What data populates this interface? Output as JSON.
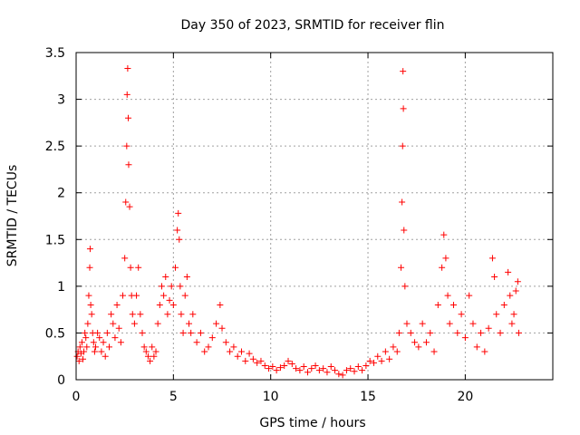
{
  "chart_data": {
    "type": "scatter",
    "title": "Day 350 of 2023, SRMTID for receiver flin",
    "xlabel": "GPS time / hours",
    "ylabel": "SRMTID / TECUs",
    "xlim": [
      0,
      24.5
    ],
    "ylim": [
      0,
      3.5
    ],
    "xticks": [
      0,
      5,
      10,
      15,
      20
    ],
    "xtick_labels": [
      "0",
      "5",
      "10",
      "15",
      "20"
    ],
    "yticks": [
      0,
      0.5,
      1,
      1.5,
      2,
      2.5,
      3,
      3.5
    ],
    "ytick_labels": [
      "0",
      "0.5",
      "1",
      "1.5",
      "2",
      "2.5",
      "3",
      "3.5"
    ],
    "grid": true,
    "marker": "+",
    "color": "#ff0000",
    "series": [
      {
        "name": "SRMTID",
        "points": [
          [
            0.05,
            0.25
          ],
          [
            0.1,
            0.3
          ],
          [
            0.15,
            0.2
          ],
          [
            0.2,
            0.35
          ],
          [
            0.25,
            0.28
          ],
          [
            0.3,
            0.4
          ],
          [
            0.35,
            0.22
          ],
          [
            0.4,
            0.3
          ],
          [
            0.45,
            0.5
          ],
          [
            0.5,
            0.45
          ],
          [
            0.55,
            0.35
          ],
          [
            0.6,
            0.6
          ],
          [
            0.65,
            0.9
          ],
          [
            0.7,
            1.2
          ],
          [
            0.72,
            1.4
          ],
          [
            0.75,
            0.8
          ],
          [
            0.8,
            0.7
          ],
          [
            0.85,
            0.5
          ],
          [
            0.9,
            0.4
          ],
          [
            0.95,
            0.3
          ],
          [
            1.0,
            0.35
          ],
          [
            1.1,
            0.5
          ],
          [
            1.2,
            0.45
          ],
          [
            1.3,
            0.3
          ],
          [
            1.4,
            0.4
          ],
          [
            1.5,
            0.25
          ],
          [
            1.6,
            0.5
          ],
          [
            1.7,
            0.35
          ],
          [
            1.8,
            0.7
          ],
          [
            1.9,
            0.6
          ],
          [
            2.0,
            0.45
          ],
          [
            2.1,
            0.8
          ],
          [
            2.2,
            0.55
          ],
          [
            2.3,
            0.4
          ],
          [
            2.4,
            0.9
          ],
          [
            2.5,
            1.3
          ],
          [
            2.55,
            1.9
          ],
          [
            2.6,
            2.5
          ],
          [
            2.62,
            3.05
          ],
          [
            2.65,
            3.33
          ],
          [
            2.68,
            2.8
          ],
          [
            2.7,
            2.3
          ],
          [
            2.75,
            1.85
          ],
          [
            2.8,
            1.2
          ],
          [
            2.85,
            0.9
          ],
          [
            2.9,
            0.7
          ],
          [
            3.0,
            0.6
          ],
          [
            3.1,
            0.9
          ],
          [
            3.2,
            1.2
          ],
          [
            3.3,
            0.7
          ],
          [
            3.4,
            0.5
          ],
          [
            3.5,
            0.35
          ],
          [
            3.6,
            0.3
          ],
          [
            3.7,
            0.25
          ],
          [
            3.8,
            0.2
          ],
          [
            3.9,
            0.35
          ],
          [
            4.0,
            0.25
          ],
          [
            4.1,
            0.3
          ],
          [
            4.2,
            0.6
          ],
          [
            4.3,
            0.8
          ],
          [
            4.4,
            1.0
          ],
          [
            4.5,
            0.9
          ],
          [
            4.6,
            1.1
          ],
          [
            4.7,
            0.7
          ],
          [
            4.8,
            0.85
          ],
          [
            4.9,
            1.0
          ],
          [
            5.0,
            0.8
          ],
          [
            5.1,
            1.2
          ],
          [
            5.2,
            1.6
          ],
          [
            5.25,
            1.78
          ],
          [
            5.3,
            1.5
          ],
          [
            5.35,
            1.0
          ],
          [
            5.4,
            0.7
          ],
          [
            5.5,
            0.5
          ],
          [
            5.6,
            0.9
          ],
          [
            5.7,
            1.1
          ],
          [
            5.8,
            0.6
          ],
          [
            5.9,
            0.5
          ],
          [
            6.0,
            0.7
          ],
          [
            6.2,
            0.4
          ],
          [
            6.4,
            0.5
          ],
          [
            6.6,
            0.3
          ],
          [
            6.8,
            0.35
          ],
          [
            7.0,
            0.45
          ],
          [
            7.2,
            0.6
          ],
          [
            7.4,
            0.8
          ],
          [
            7.5,
            0.55
          ],
          [
            7.7,
            0.4
          ],
          [
            7.9,
            0.3
          ],
          [
            8.1,
            0.35
          ],
          [
            8.3,
            0.25
          ],
          [
            8.5,
            0.3
          ],
          [
            8.7,
            0.2
          ],
          [
            8.9,
            0.28
          ],
          [
            9.1,
            0.22
          ],
          [
            9.3,
            0.18
          ],
          [
            9.5,
            0.2
          ],
          [
            9.7,
            0.15
          ],
          [
            9.9,
            0.12
          ],
          [
            10.1,
            0.14
          ],
          [
            10.3,
            0.1
          ],
          [
            10.5,
            0.13
          ],
          [
            10.7,
            0.15
          ],
          [
            10.9,
            0.2
          ],
          [
            11.1,
            0.17
          ],
          [
            11.3,
            0.12
          ],
          [
            11.5,
            0.1
          ],
          [
            11.7,
            0.14
          ],
          [
            11.9,
            0.08
          ],
          [
            12.1,
            0.12
          ],
          [
            12.3,
            0.15
          ],
          [
            12.5,
            0.1
          ],
          [
            12.7,
            0.12
          ],
          [
            12.9,
            0.08
          ],
          [
            13.1,
            0.14
          ],
          [
            13.3,
            0.1
          ],
          [
            13.5,
            0.06
          ],
          [
            13.7,
            0.05
          ],
          [
            13.9,
            0.1
          ],
          [
            14.1,
            0.12
          ],
          [
            14.3,
            0.09
          ],
          [
            14.5,
            0.14
          ],
          [
            14.7,
            0.1
          ],
          [
            14.9,
            0.15
          ],
          [
            15.1,
            0.2
          ],
          [
            15.3,
            0.18
          ],
          [
            15.5,
            0.25
          ],
          [
            15.7,
            0.2
          ],
          [
            15.9,
            0.3
          ],
          [
            16.1,
            0.22
          ],
          [
            16.3,
            0.35
          ],
          [
            16.5,
            0.3
          ],
          [
            16.6,
            0.5
          ],
          [
            16.7,
            1.2
          ],
          [
            16.75,
            1.9
          ],
          [
            16.78,
            2.5
          ],
          [
            16.8,
            3.3
          ],
          [
            16.82,
            2.9
          ],
          [
            16.85,
            1.6
          ],
          [
            16.9,
            1.0
          ],
          [
            17.0,
            0.6
          ],
          [
            17.2,
            0.5
          ],
          [
            17.4,
            0.4
          ],
          [
            17.6,
            0.35
          ],
          [
            17.8,
            0.6
          ],
          [
            18.0,
            0.4
          ],
          [
            18.2,
            0.5
          ],
          [
            18.4,
            0.3
          ],
          [
            18.6,
            0.8
          ],
          [
            18.8,
            1.2
          ],
          [
            18.9,
            1.55
          ],
          [
            19.0,
            1.3
          ],
          [
            19.1,
            0.9
          ],
          [
            19.2,
            0.6
          ],
          [
            19.4,
            0.8
          ],
          [
            19.6,
            0.5
          ],
          [
            19.8,
            0.7
          ],
          [
            20.0,
            0.45
          ],
          [
            20.2,
            0.9
          ],
          [
            20.4,
            0.6
          ],
          [
            20.6,
            0.35
          ],
          [
            20.8,
            0.5
          ],
          [
            21.0,
            0.3
          ],
          [
            21.2,
            0.55
          ],
          [
            21.4,
            1.3
          ],
          [
            21.5,
            1.1
          ],
          [
            21.6,
            0.7
          ],
          [
            21.8,
            0.5
          ],
          [
            22.0,
            0.8
          ],
          [
            22.2,
            1.15
          ],
          [
            22.3,
            0.9
          ],
          [
            22.4,
            0.6
          ],
          [
            22.5,
            0.7
          ],
          [
            22.6,
            0.95
          ],
          [
            22.7,
            1.05
          ],
          [
            22.75,
            0.5
          ]
        ]
      }
    ]
  }
}
